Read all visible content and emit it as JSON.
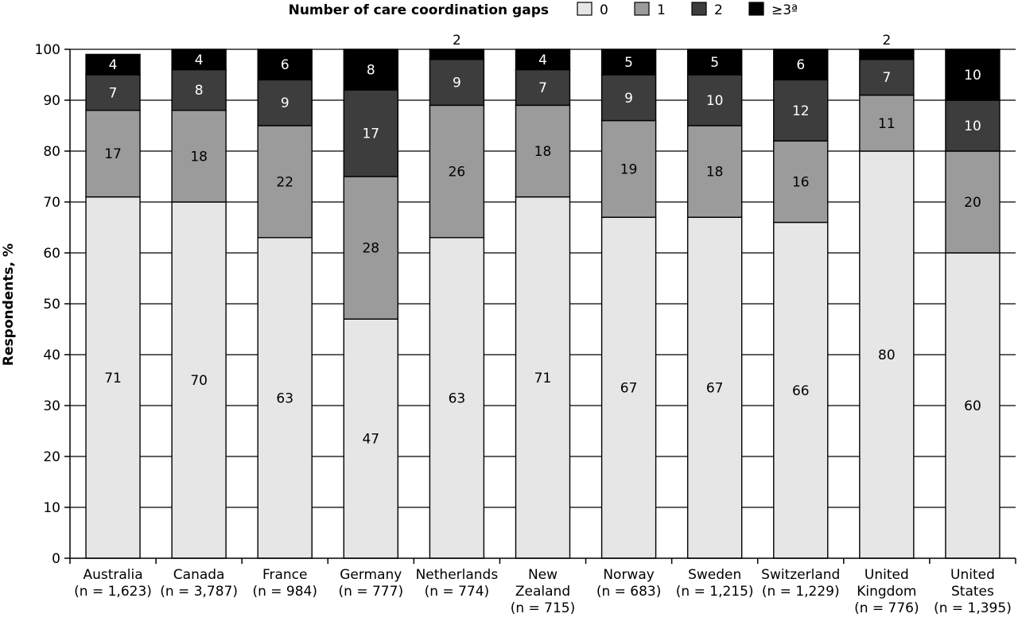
{
  "chart_data": {
    "type": "bar",
    "stacked": true,
    "legend_title": "Number of care coordination gaps",
    "legend_placement": "top-center",
    "ylabel": "Respondents, %",
    "ylim": [
      0,
      100
    ],
    "yticks": [
      "0",
      "10",
      "20",
      "30",
      "40",
      "50",
      "60",
      "70",
      "80",
      "90",
      "100"
    ],
    "categories": [
      [
        "Australia",
        "(n = 1,623)"
      ],
      [
        "Canada",
        "(n = 3,787)"
      ],
      [
        "France",
        "(n = 984)"
      ],
      [
        "Germany",
        "(n = 777)"
      ],
      [
        "Netherlands",
        "(n = 774)"
      ],
      [
        "New",
        "Zealand",
        "(n = 715)"
      ],
      [
        "Norway",
        "(n = 683)"
      ],
      [
        "Sweden",
        "(n = 1,215)"
      ],
      [
        "Switzerland",
        "(n = 1,229)"
      ],
      [
        "United",
        "Kingdom",
        "(n = 776)"
      ],
      [
        "United",
        "States",
        "(n = 1,395)"
      ]
    ],
    "series": [
      {
        "name": "0",
        "color": "#e6e6e6",
        "label_color": "#000000",
        "values": [
          71,
          70,
          63,
          47,
          63,
          71,
          67,
          67,
          66,
          80,
          60
        ]
      },
      {
        "name": "1",
        "color": "#9b9b9b",
        "label_color": "#000000",
        "values": [
          17,
          18,
          22,
          28,
          26,
          18,
          19,
          18,
          16,
          11,
          20
        ]
      },
      {
        "name": "2",
        "color": "#3d3d3d",
        "label_color": "#ffffff",
        "values": [
          7,
          8,
          9,
          17,
          9,
          7,
          9,
          10,
          12,
          7,
          10
        ]
      },
      {
        "name": "≥3ª",
        "color": "#000000",
        "label_color": "#ffffff",
        "values": [
          4,
          4,
          6,
          8,
          2,
          4,
          5,
          5,
          6,
          2,
          10
        ]
      }
    ],
    "grid": true
  }
}
